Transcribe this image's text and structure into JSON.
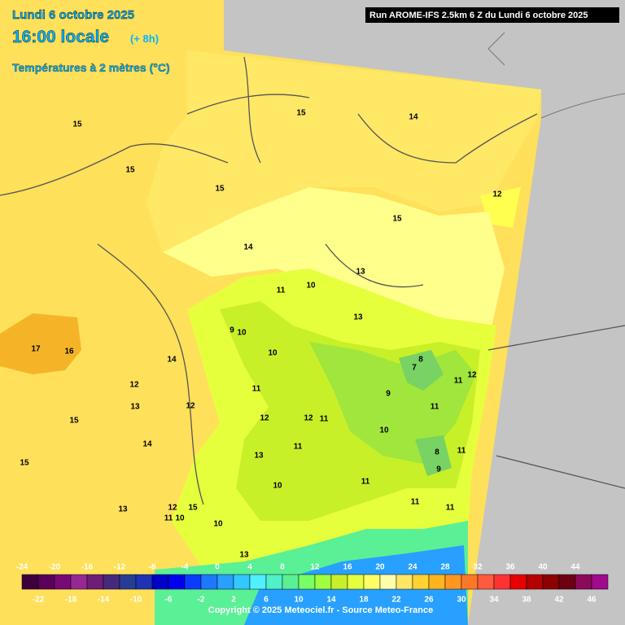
{
  "header": {
    "date": "Lundi 6 octobre 2025",
    "time": "16:00 locale",
    "offset": "(+ 8h)",
    "parameter": "Températures à 2 mètres (°C)",
    "run": "Run AROME-IFS 2.5km 6 Z du Lundi 6 octobre 2025"
  },
  "map": {
    "contour_labels": [
      15,
      15,
      15,
      14,
      15,
      12,
      15,
      14,
      13,
      11,
      10,
      13,
      9,
      10,
      10,
      17,
      16,
      14,
      8,
      7,
      11,
      12,
      12,
      11,
      9,
      13,
      12,
      15,
      11,
      12,
      12,
      11,
      10,
      14,
      11,
      8,
      11,
      9,
      15,
      13,
      12,
      15,
      11,
      10,
      13,
      11,
      10,
      11,
      11,
      10,
      13
    ]
  },
  "legend": {
    "colors": [
      "#3c003c",
      "#5a005a",
      "#780a78",
      "#962896",
      "#6e1e78",
      "#46287d",
      "#283c96",
      "#1e32b4",
      "#0000c8",
      "#0000f0",
      "#0a3cff",
      "#1e78ff",
      "#28a0ff",
      "#32c8ff",
      "#50f0ff",
      "#50f0c8",
      "#5af096",
      "#78ff64",
      "#a0ff3c",
      "#c8f028",
      "#e6ff3c",
      "#ffff64",
      "#ffffaa",
      "#ffe664",
      "#ffd232",
      "#ffb41e",
      "#ff961e",
      "#ff7828",
      "#ff5a3c",
      "#ff3232",
      "#e60000",
      "#b40000",
      "#8c0000",
      "#6e0014",
      "#8c0a5a",
      "#a00a8c",
      "#c800c8",
      "#f000f0",
      "#ff50ff",
      "#ff96ff"
    ],
    "top_labels": [
      -24,
      -20,
      -16,
      -12,
      -8,
      -4,
      0,
      4,
      8,
      12,
      16,
      20,
      24,
      28,
      32,
      36,
      40,
      44
    ],
    "bottom_labels": [
      -22,
      -18,
      -14,
      -10,
      -6,
      -2,
      2,
      6,
      10,
      14,
      18,
      22,
      26,
      30,
      34,
      38,
      42,
      46
    ]
  },
  "footer": {
    "copyright": "Copyright © 2025 Meteociel.fr - Source Meteo-France"
  }
}
